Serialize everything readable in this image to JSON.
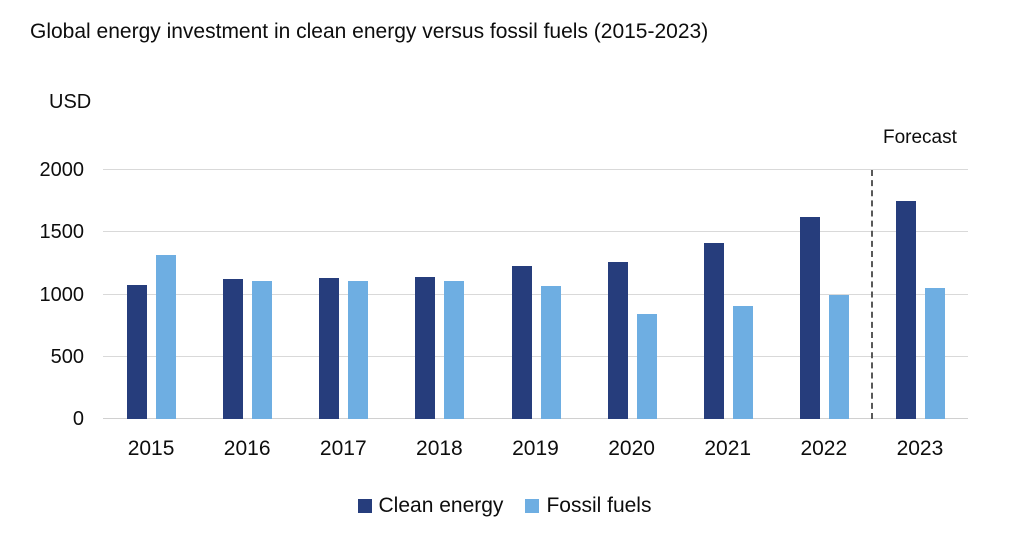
{
  "title": "Global energy investment in clean energy versus fossil fuels (2015-2023)",
  "y_axis_unit_label": "USD",
  "forecast_label": "Forecast",
  "colors": {
    "clean_energy": "#263d7c",
    "fossil_fuels": "#6eaee2",
    "gridline": "#d9d9d9",
    "divider": "#595959",
    "text": "#0d0d0d"
  },
  "legend": {
    "items": [
      {
        "label": "Clean energy",
        "color": "#263d7c"
      },
      {
        "label": "Fossil fuels",
        "color": "#6eaee2"
      }
    ]
  },
  "chart_data": {
    "type": "bar",
    "title": "Global energy investment in clean energy versus fossil fuels (2015-2023)",
    "xlabel": "",
    "ylabel": "USD",
    "categories": [
      "2015",
      "2016",
      "2017",
      "2018",
      "2019",
      "2020",
      "2021",
      "2022",
      "2023"
    ],
    "series": [
      {
        "name": "Clean energy",
        "color": "#263d7c",
        "values": [
          1080,
          1125,
          1130,
          1140,
          1230,
          1260,
          1410,
          1620,
          1750
        ]
      },
      {
        "name": "Fossil fuels",
        "color": "#6eaee2",
        "values": [
          1320,
          1105,
          1110,
          1105,
          1065,
          840,
          910,
          1000,
          1050
        ]
      }
    ],
    "ylim": [
      0,
      2000
    ],
    "yticks": [
      0,
      500,
      1000,
      1500,
      2000
    ],
    "grid": true,
    "legend_position": "bottom",
    "annotations": [
      {
        "text": "Forecast",
        "type": "forecast-divider",
        "between": [
          "2022",
          "2023"
        ],
        "divider_style": "dashed"
      }
    ]
  }
}
